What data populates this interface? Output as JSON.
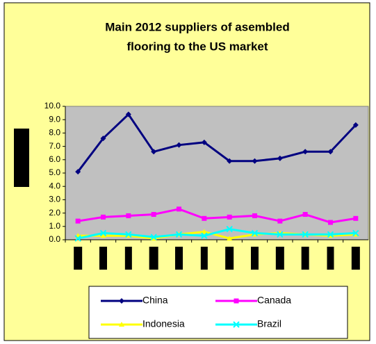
{
  "chart_data": {
    "type": "line",
    "title": [
      "Main 2012 suppliers of asembled",
      "flooring to the US market"
    ],
    "categories": [
      null,
      null,
      null,
      null,
      null,
      null,
      null,
      null,
      null,
      null,
      null,
      null
    ],
    "series": [
      {
        "name": "China",
        "color": "#000080",
        "marker": "diamond",
        "values": [
          5.1,
          7.6,
          9.4,
          6.6,
          7.1,
          7.3,
          5.9,
          5.9,
          6.1,
          6.6,
          6.6,
          8.6
        ]
      },
      {
        "name": "Canada",
        "color": "#ff00ff",
        "marker": "square",
        "values": [
          1.4,
          1.7,
          1.8,
          1.9,
          2.3,
          1.6,
          1.7,
          1.8,
          1.4,
          1.9,
          1.3,
          1.6
        ]
      },
      {
        "name": "Indonesia",
        "color": "#ffff00",
        "marker": "triangle",
        "values": [
          0.3,
          0.3,
          0.3,
          0.1,
          0.4,
          0.6,
          0.1,
          0.4,
          0.5,
          0.4,
          0.3,
          0.4
        ]
      },
      {
        "name": "Brazil",
        "color": "#00ffff",
        "marker": "x",
        "values": [
          0.1,
          0.5,
          0.4,
          0.2,
          0.4,
          0.3,
          0.8,
          0.5,
          0.4,
          0.4,
          0.4,
          0.5
        ]
      }
    ],
    "ylim": [
      0,
      10
    ],
    "yticks": [
      {
        "value": 0,
        "label": "0.0"
      },
      {
        "value": 1,
        "label": "1.0"
      },
      {
        "value": 2,
        "label": "2.0"
      },
      {
        "value": 3,
        "label": "3.0"
      },
      {
        "value": 4,
        "label": "4.0"
      },
      {
        "value": 5,
        "label": "5.0"
      },
      {
        "value": 6,
        "label": "6.0"
      },
      {
        "value": 7,
        "label": "7.0"
      },
      {
        "value": 8,
        "label": "8.0"
      },
      {
        "value": 9,
        "label": "9.0"
      },
      {
        "value": 10,
        "label": "10.0"
      }
    ],
    "grid": false,
    "legend": "bottom"
  }
}
